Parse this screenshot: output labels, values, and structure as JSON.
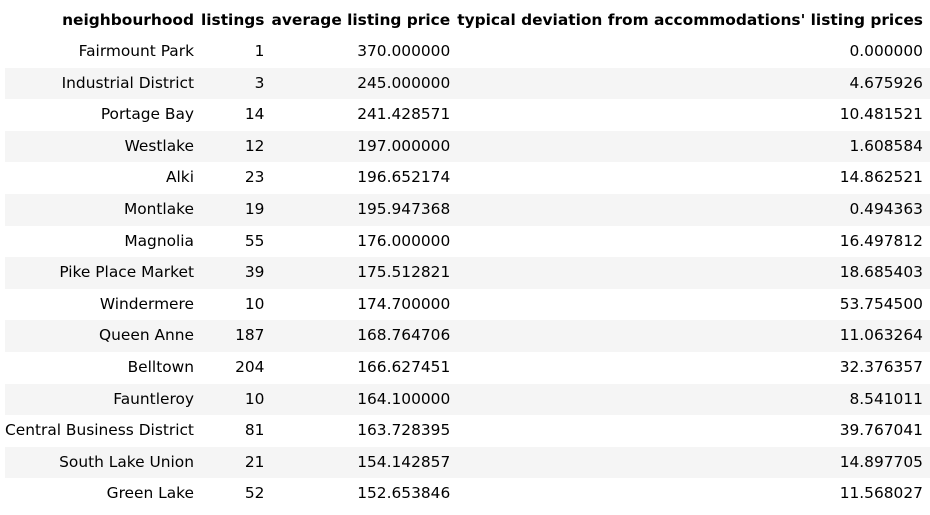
{
  "table": {
    "columns": [
      "neighbourhood",
      "listings",
      "average listing price",
      "typical deviation from accommodations' listing prices"
    ],
    "rows": [
      [
        "Fairmount Park",
        "1",
        "370.000000",
        "0.000000"
      ],
      [
        "Industrial District",
        "3",
        "245.000000",
        "4.675926"
      ],
      [
        "Portage Bay",
        "14",
        "241.428571",
        "10.481521"
      ],
      [
        "Westlake",
        "12",
        "197.000000",
        "1.608584"
      ],
      [
        "Alki",
        "23",
        "196.652174",
        "14.862521"
      ],
      [
        "Montlake",
        "19",
        "195.947368",
        "0.494363"
      ],
      [
        "Magnolia",
        "55",
        "176.000000",
        "16.497812"
      ],
      [
        "Pike Place Market",
        "39",
        "175.512821",
        "18.685403"
      ],
      [
        "Windermere",
        "10",
        "174.700000",
        "53.754500"
      ],
      [
        "Queen Anne",
        "187",
        "168.764706",
        "11.063264"
      ],
      [
        "Belltown",
        "204",
        "166.627451",
        "32.376357"
      ],
      [
        "Fauntleroy",
        "10",
        "164.100000",
        "8.541011"
      ],
      [
        "Central Business District",
        "81",
        "163.728395",
        "39.767041"
      ],
      [
        "South Lake Union",
        "21",
        "154.142857",
        "14.897705"
      ],
      [
        "Green Lake",
        "52",
        "152.653846",
        "11.568027"
      ]
    ]
  }
}
